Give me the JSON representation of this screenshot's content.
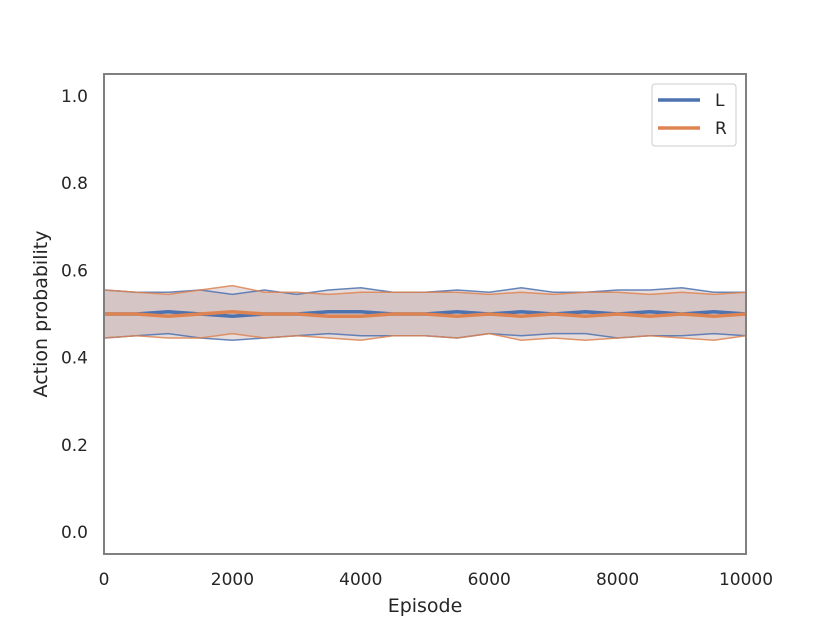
{
  "chart_data": {
    "type": "line",
    "title": "",
    "xlabel": "Episode",
    "ylabel": "Action probability",
    "xlim": [
      0,
      10000
    ],
    "ylim": [
      -0.05,
      1.05
    ],
    "x_ticks": [
      "0",
      "2000",
      "4000",
      "6000",
      "8000",
      "10000"
    ],
    "y_ticks": [
      "0.0",
      "0.2",
      "0.4",
      "0.6",
      "0.8",
      "1.0"
    ],
    "x_tick_values": [
      0,
      2000,
      4000,
      6000,
      8000,
      10000
    ],
    "y_tick_values": [
      0.0,
      0.2,
      0.4,
      0.6,
      0.8,
      1.0
    ],
    "grid": false,
    "legend_position": "top-right",
    "x": [
      0,
      500,
      1000,
      1500,
      2000,
      2500,
      3000,
      3500,
      4000,
      4500,
      5000,
      5500,
      6000,
      6500,
      7000,
      7500,
      8000,
      8500,
      9000,
      9500,
      10000
    ],
    "series": [
      {
        "name": "L",
        "color": "#4c72b0",
        "mean": [
          0.5,
          0.5,
          0.505,
          0.5,
          0.495,
          0.5,
          0.5,
          0.505,
          0.505,
          0.5,
          0.5,
          0.505,
          0.5,
          0.505,
          0.5,
          0.505,
          0.5,
          0.505,
          0.5,
          0.505,
          0.5
        ],
        "upper": [
          0.555,
          0.55,
          0.55,
          0.555,
          0.545,
          0.555,
          0.545,
          0.555,
          0.56,
          0.55,
          0.55,
          0.555,
          0.55,
          0.56,
          0.55,
          0.55,
          0.555,
          0.555,
          0.56,
          0.55,
          0.55
        ],
        "lower": [
          0.445,
          0.45,
          0.455,
          0.445,
          0.44,
          0.445,
          0.45,
          0.455,
          0.45,
          0.45,
          0.45,
          0.445,
          0.455,
          0.45,
          0.455,
          0.455,
          0.445,
          0.45,
          0.45,
          0.455,
          0.45
        ]
      },
      {
        "name": "R",
        "color": "#dd8452",
        "mean": [
          0.5,
          0.5,
          0.495,
          0.5,
          0.505,
          0.5,
          0.5,
          0.495,
          0.495,
          0.5,
          0.5,
          0.495,
          0.5,
          0.495,
          0.5,
          0.495,
          0.5,
          0.495,
          0.5,
          0.495,
          0.5
        ],
        "upper": [
          0.555,
          0.55,
          0.545,
          0.555,
          0.565,
          0.55,
          0.55,
          0.545,
          0.55,
          0.55,
          0.55,
          0.55,
          0.545,
          0.55,
          0.545,
          0.55,
          0.55,
          0.545,
          0.55,
          0.545,
          0.55
        ],
        "lower": [
          0.445,
          0.45,
          0.445,
          0.445,
          0.455,
          0.445,
          0.45,
          0.445,
          0.44,
          0.45,
          0.45,
          0.445,
          0.455,
          0.44,
          0.445,
          0.44,
          0.445,
          0.45,
          0.445,
          0.44,
          0.45
        ]
      }
    ],
    "band_color": "#b89a9a"
  }
}
